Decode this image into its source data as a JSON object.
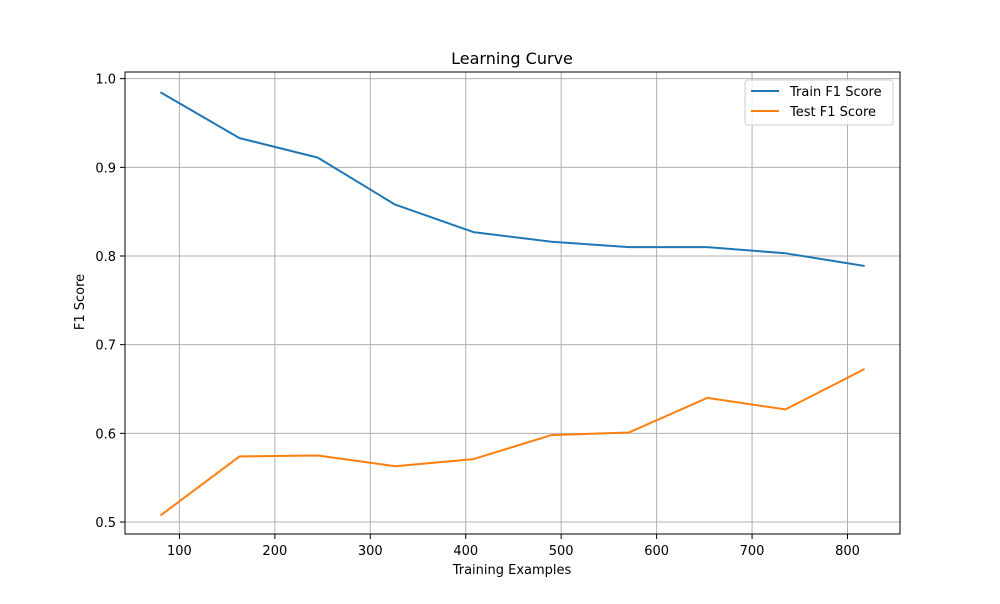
{
  "chart_data": {
    "type": "line",
    "title": "Learning Curve",
    "xlabel": "Training Examples",
    "ylabel": "F1 Score",
    "xlim": [
      43,
      855
    ],
    "ylim": [
      0.4865,
      1.0075
    ],
    "xticks": [
      100,
      200,
      300,
      400,
      500,
      600,
      700,
      800
    ],
    "xtick_labels": [
      "100",
      "200",
      "300",
      "400",
      "500",
      "600",
      "700",
      "800"
    ],
    "yticks": [
      0.5,
      0.6,
      0.7,
      0.8,
      0.9,
      1.0
    ],
    "ytick_labels": [
      "0.5",
      "0.6",
      "0.7",
      "0.8",
      "0.9",
      "1.0"
    ],
    "grid": true,
    "legend_position": "top-right",
    "x": [
      81,
      163,
      245,
      326,
      408,
      490,
      571,
      653,
      735,
      817
    ],
    "series": [
      {
        "name": "Train F1 Score",
        "color": "#1f77b4",
        "values": [
          0.984,
          0.933,
          0.911,
          0.858,
          0.827,
          0.816,
          0.81,
          0.81,
          0.803,
          0.789
        ]
      },
      {
        "name": "Test F1 Score",
        "color": "#ff7f0e",
        "values": [
          0.508,
          0.574,
          0.575,
          0.563,
          0.571,
          0.598,
          0.601,
          0.64,
          0.627,
          0.672
        ]
      }
    ]
  }
}
